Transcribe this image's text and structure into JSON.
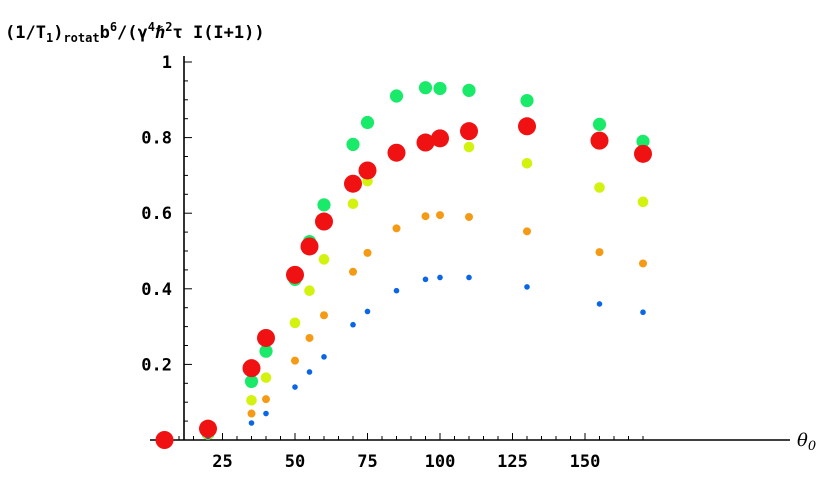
{
  "chart_data": {
    "type": "scatter",
    "ylabel_parts": {
      "open": "(1/T",
      "sub_one": "1",
      "close": ")",
      "sub_rotat": "rotat",
      "b": "b",
      "sup_six": "6",
      "slash_open": "/(γ",
      "sup_four": "4",
      "hbar": "ℏ",
      "sup_two": "2",
      "rest": "τ I(I+1))"
    },
    "xlabel_parts": {
      "theta": "θ",
      "sub_zero": "0"
    },
    "xlim": [
      0,
      175
    ],
    "ylim": [
      0,
      1.0
    ],
    "x_ticks": [
      25,
      50,
      75,
      100,
      125,
      150
    ],
    "y_ticks": [
      0.2,
      0.4,
      0.6,
      0.8,
      1
    ],
    "x_tick_labels": [
      "25",
      "50",
      "75",
      "100",
      "125",
      "150"
    ],
    "y_tick_labels": [
      "0.2",
      "0.4",
      "0.6",
      "0.8",
      "1"
    ],
    "grid": false,
    "legend": "none",
    "series": [
      {
        "color": "#0a66e6",
        "size": "small",
        "points": [
          [
            5,
            0
          ],
          [
            20,
            0.01
          ],
          [
            35,
            0.045
          ],
          [
            40,
            0.07
          ],
          [
            50,
            0.14
          ],
          [
            55,
            0.18
          ],
          [
            60,
            0.22
          ],
          [
            70,
            0.305
          ],
          [
            75,
            0.34
          ],
          [
            85,
            0.395
          ],
          [
            95,
            0.425
          ],
          [
            100,
            0.43
          ],
          [
            110,
            0.43
          ],
          [
            130,
            0.405
          ],
          [
            155,
            0.36
          ],
          [
            170,
            0.338
          ]
        ]
      },
      {
        "color": "#f59a14",
        "size": "small-medium",
        "points": [
          [
            5,
            0
          ],
          [
            20,
            0.012
          ],
          [
            35,
            0.07
          ],
          [
            40,
            0.108
          ],
          [
            50,
            0.21
          ],
          [
            55,
            0.27
          ],
          [
            60,
            0.33
          ],
          [
            70,
            0.445
          ],
          [
            75,
            0.495
          ],
          [
            85,
            0.56
          ],
          [
            95,
            0.592
          ],
          [
            100,
            0.595
          ],
          [
            110,
            0.59
          ],
          [
            130,
            0.552
          ],
          [
            155,
            0.497
          ],
          [
            170,
            0.467
          ]
        ]
      },
      {
        "color": "#d4f20f",
        "size": "medium",
        "points": [
          [
            5,
            0
          ],
          [
            20,
            0.015
          ],
          [
            35,
            0.105
          ],
          [
            40,
            0.165
          ],
          [
            50,
            0.31
          ],
          [
            55,
            0.395
          ],
          [
            60,
            0.478
          ],
          [
            70,
            0.625
          ],
          [
            75,
            0.685
          ],
          [
            85,
            0.758
          ],
          [
            95,
            0.785
          ],
          [
            100,
            0.795
          ],
          [
            110,
            0.775
          ],
          [
            130,
            0.732
          ],
          [
            155,
            0.668
          ],
          [
            170,
            0.63
          ]
        ]
      },
      {
        "color": "#19ea6a",
        "size": "medium-large",
        "points": [
          [
            5,
            0
          ],
          [
            20,
            0.018
          ],
          [
            35,
            0.155
          ],
          [
            40,
            0.235
          ],
          [
            50,
            0.425
          ],
          [
            55,
            0.525
          ],
          [
            60,
            0.622
          ],
          [
            70,
            0.782
          ],
          [
            75,
            0.84
          ],
          [
            85,
            0.91
          ],
          [
            95,
            0.932
          ],
          [
            100,
            0.93
          ],
          [
            110,
            0.925
          ],
          [
            130,
            0.898
          ],
          [
            155,
            0.835
          ],
          [
            170,
            0.79
          ]
        ]
      },
      {
        "color": "#f01212",
        "size": "large",
        "points": [
          [
            5,
            0
          ],
          [
            20,
            0.03
          ],
          [
            35,
            0.19
          ],
          [
            40,
            0.27
          ],
          [
            50,
            0.437
          ],
          [
            55,
            0.512
          ],
          [
            60,
            0.578
          ],
          [
            70,
            0.678
          ],
          [
            75,
            0.713
          ],
          [
            85,
            0.76
          ],
          [
            95,
            0.787
          ],
          [
            100,
            0.798
          ],
          [
            110,
            0.817
          ],
          [
            130,
            0.83
          ],
          [
            155,
            0.792
          ],
          [
            170,
            0.757
          ]
        ]
      }
    ]
  }
}
